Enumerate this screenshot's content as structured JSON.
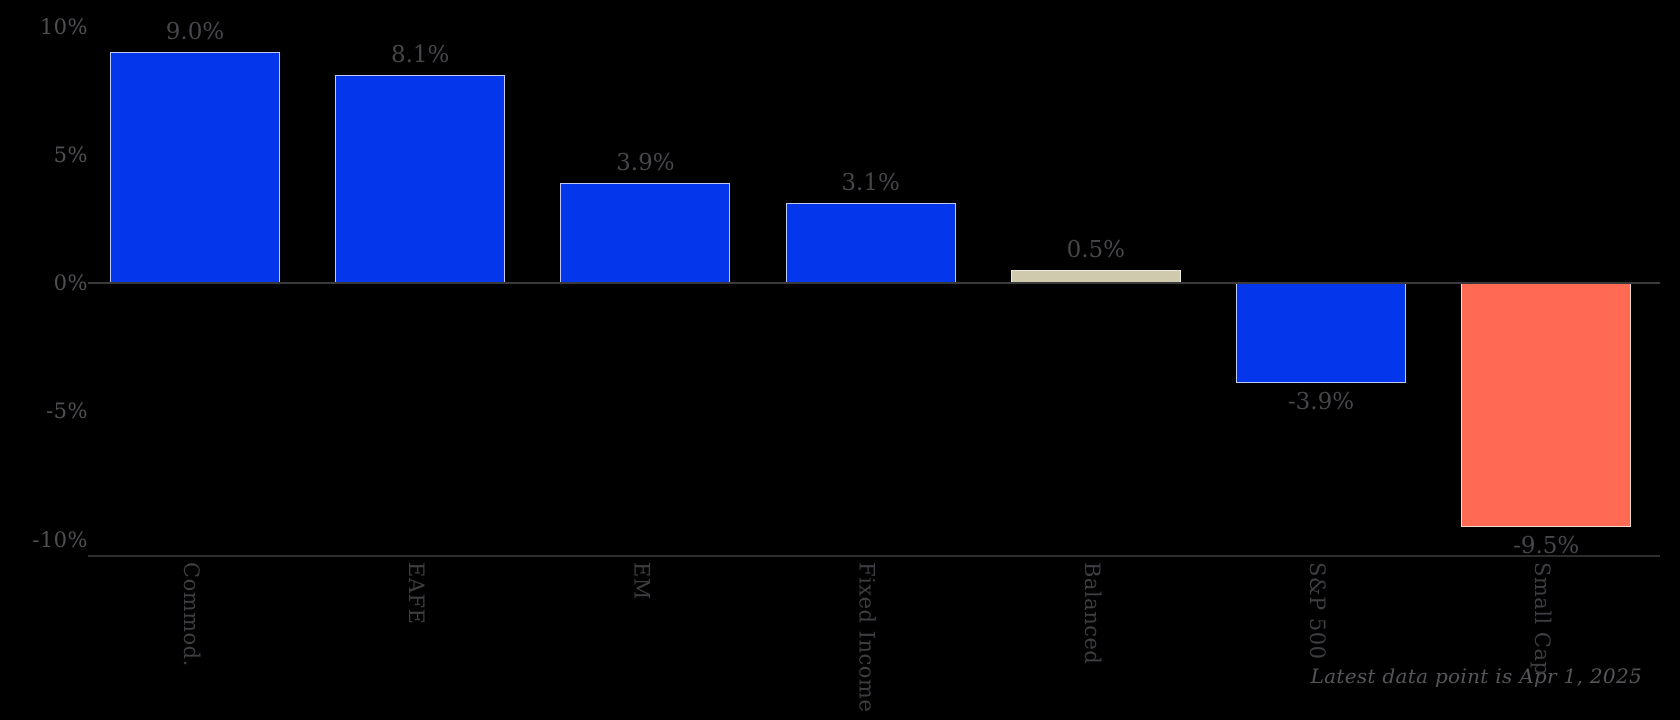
{
  "chart_data": {
    "type": "bar",
    "title": "",
    "xlabel": "",
    "ylabel": "",
    "categories": [
      "Commod.",
      "EAFE",
      "EM",
      "Fixed Income",
      "Balanced",
      "S&P 500",
      "Small Cap"
    ],
    "values": [
      9.0,
      8.1,
      3.9,
      3.1,
      0.5,
      -3.9,
      -9.5
    ],
    "value_labels": [
      "9.0%",
      "8.1%",
      "3.9%",
      "3.1%",
      "0.5%",
      "-3.9%",
      "-9.5%"
    ],
    "bar_colors": [
      "#0437ec",
      "#0437ec",
      "#0437ec",
      "#0437ec",
      "#cfc9ad",
      "#0437ec",
      "#ff6a55"
    ],
    "y_ticks": [
      {
        "value": 10,
        "label": "10%"
      },
      {
        "value": 5,
        "label": "5%"
      },
      {
        "value": 0,
        "label": "0%"
      },
      {
        "value": -5,
        "label": "-5%"
      },
      {
        "value": -10,
        "label": "-10%"
      }
    ],
    "ylim": [
      -10.6,
      10.3
    ],
    "grid": "zero-baseline-and-bottom-spine-only",
    "legend": "none",
    "background_color": "#000000",
    "note": "Latest data point is Apr 1, 2025"
  }
}
